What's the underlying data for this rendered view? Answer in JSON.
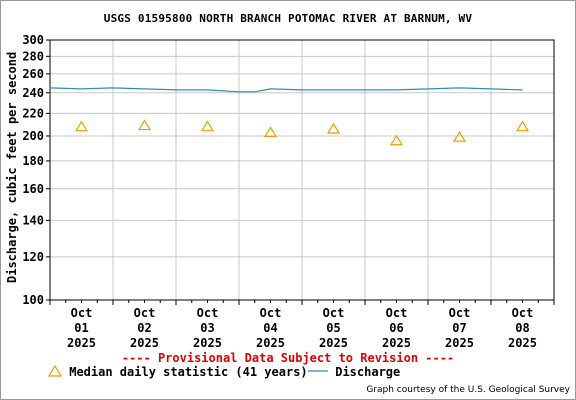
{
  "chart_data": {
    "type": "line",
    "title": "USGS 01595800 NORTH BRANCH POTOMAC RIVER AT BARNUM, WV",
    "ylabel": "Discharge, cubic feet per second",
    "xlabel": "",
    "y_scale": "log",
    "ylim": [
      100,
      300
    ],
    "y_ticks": [
      100,
      120,
      140,
      160,
      180,
      200,
      220,
      240,
      260,
      280,
      300
    ],
    "x_ticks": [
      "Oct 01 2025",
      "Oct 02 2025",
      "Oct 03 2025",
      "Oct 04 2025",
      "Oct 05 2025",
      "Oct 06 2025",
      "Oct 07 2025",
      "Oct 08 2025"
    ],
    "grid": true,
    "series": [
      {
        "name": "Discharge",
        "type": "line",
        "color": "#2a8fbd",
        "x_days": [
          0.0,
          0.5,
          1.0,
          1.5,
          2.0,
          2.5,
          3.0,
          3.25,
          3.5,
          4.0,
          4.5,
          5.0,
          5.5,
          6.0,
          6.5,
          7.0,
          7.5
        ],
        "y": [
          245,
          244,
          245,
          244,
          243,
          243,
          241,
          241,
          244,
          243,
          243,
          243,
          243,
          244,
          245,
          244,
          243
        ]
      },
      {
        "name": "Median daily statistic (41 years)",
        "type": "scatter",
        "marker": "triangle",
        "color": "#e8a000",
        "x_days": [
          0.5,
          1.5,
          2.5,
          3.5,
          4.5,
          5.5,
          6.5,
          7.5
        ],
        "y": [
          208,
          209,
          208,
          203,
          206,
          196,
          199,
          208
        ]
      }
    ]
  },
  "provisional_note": "---- Provisional Data Subject to Revision ----",
  "legend": {
    "median_label": "Median daily statistic (41 years)",
    "discharge_label": "Discharge"
  },
  "credit": "Graph courtesy of the U.S. Geological Survey"
}
